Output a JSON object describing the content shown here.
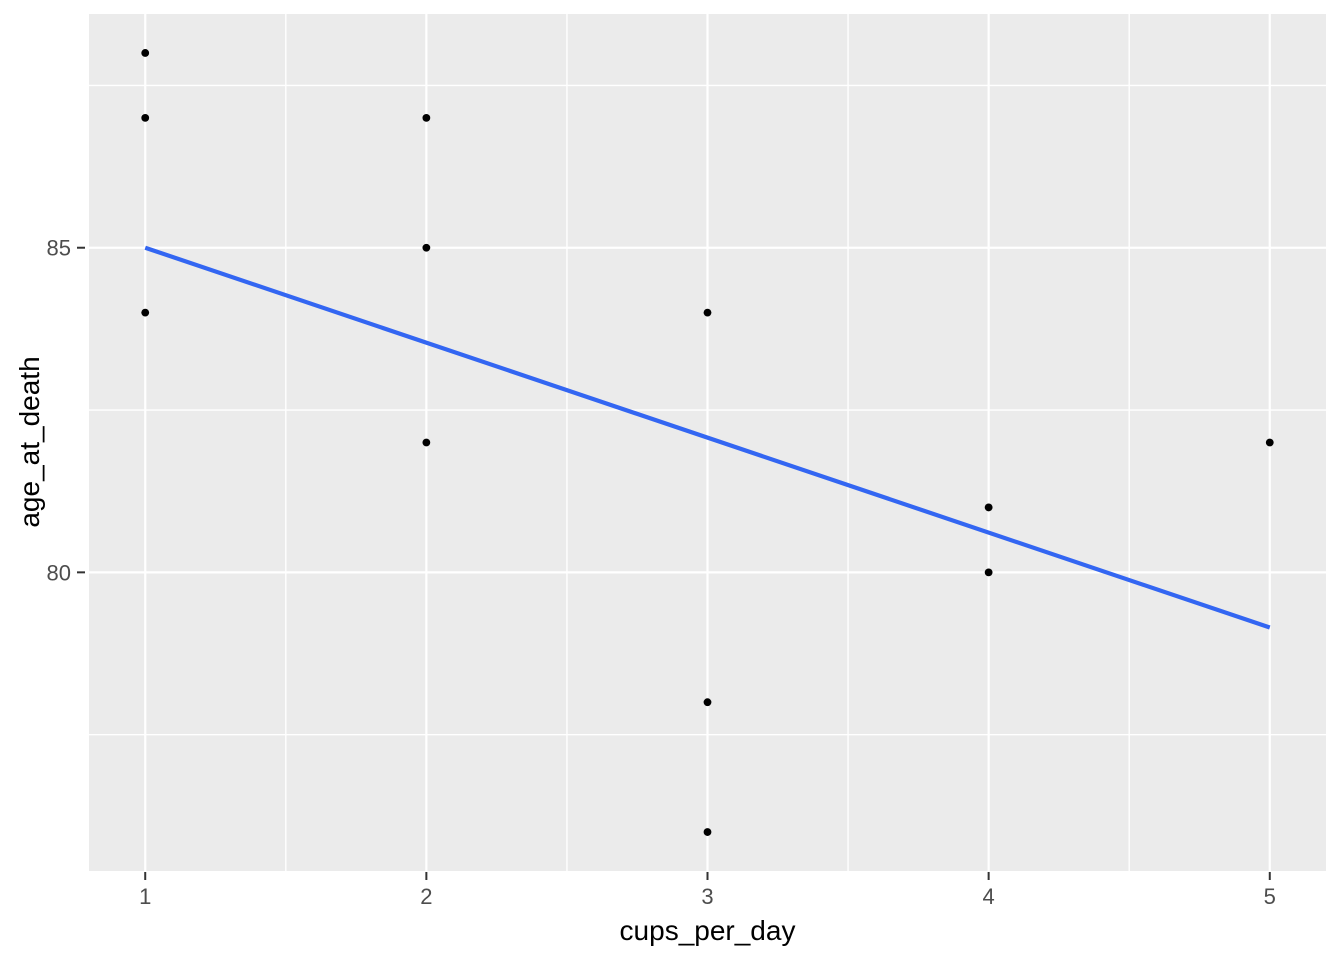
{
  "chart_data": {
    "type": "scatter",
    "title": "",
    "xlabel": "cups_per_day",
    "ylabel": "age_at_death",
    "points": [
      {
        "x": 1,
        "y": 88
      },
      {
        "x": 1,
        "y": 87
      },
      {
        "x": 1,
        "y": 84
      },
      {
        "x": 2,
        "y": 87
      },
      {
        "x": 2,
        "y": 85
      },
      {
        "x": 2,
        "y": 82
      },
      {
        "x": 3,
        "y": 84
      },
      {
        "x": 3,
        "y": 78
      },
      {
        "x": 3,
        "y": 76
      },
      {
        "x": 4,
        "y": 81
      },
      {
        "x": 4,
        "y": 80
      },
      {
        "x": 5,
        "y": 82
      }
    ],
    "trend_line": {
      "type": "linear",
      "x1": 1,
      "y1": 85.0,
      "x2": 5,
      "y2": 79.15,
      "color": "#3366F2",
      "width": 4.2
    },
    "xlim": [
      0.8,
      5.2
    ],
    "ylim": [
      75.4,
      88.6
    ],
    "x_major_ticks": [
      1,
      2,
      3,
      4,
      5
    ],
    "x_tick_labels": [
      "1",
      "2",
      "3",
      "4",
      "5"
    ],
    "x_minor_ticks": [
      1.5,
      2.5,
      3.5,
      4.5
    ],
    "y_major_ticks": [
      80,
      85
    ],
    "y_tick_labels": [
      "80",
      "85"
    ],
    "y_minor_ticks": [
      77.5,
      82.5,
      87.5
    ],
    "grid": "major+minor",
    "legend": "none",
    "style": {
      "panel_bg": "#EBEBEB",
      "grid_color": "#FFFFFF",
      "point_color": "#000000",
      "point_radius": 3.9,
      "tick_label_color": "#4D4D4D",
      "tick_mark_color": "#333333",
      "axis_title_color": "#000000"
    }
  }
}
